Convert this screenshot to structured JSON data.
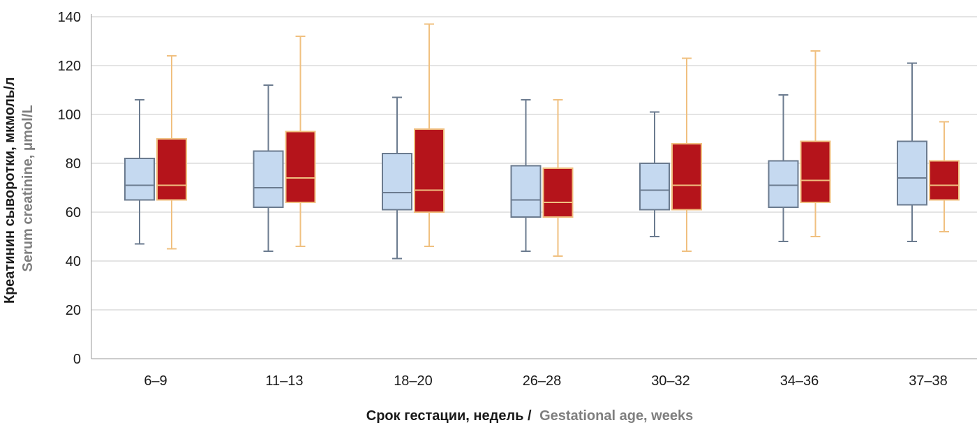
{
  "chart_data": {
    "type": "box",
    "categories": [
      "6–9",
      "11–13",
      "18–20",
      "26–28",
      "30–32",
      "34–36",
      "37–38"
    ],
    "ylim": [
      0,
      140
    ],
    "yticks": [
      0,
      20,
      40,
      60,
      80,
      100,
      120,
      140
    ],
    "grid": true,
    "ylabel_primary": "Креатинин сыворотки, мкмоль/л",
    "ylabel_secondary": "Serum creatinine, μmol/L",
    "xlabel_primary": "Срок гестации, недель /",
    "xlabel_secondary": "Gestational age, weeks",
    "series": [
      {
        "color_fill": "#c5d9f0",
        "color_stroke": "#6b7b8f",
        "color_median": "#6b7b8f",
        "boxes": [
          {
            "min": 47,
            "q1": 65,
            "median": 71,
            "q3": 82,
            "max": 106
          },
          {
            "min": 44,
            "q1": 62,
            "median": 70,
            "q3": 85,
            "max": 112
          },
          {
            "min": 41,
            "q1": 61,
            "median": 68,
            "q3": 84,
            "max": 107
          },
          {
            "min": 44,
            "q1": 58,
            "median": 65,
            "q3": 79,
            "max": 106
          },
          {
            "min": 50,
            "q1": 61,
            "median": 69,
            "q3": 80,
            "max": 101
          },
          {
            "min": 48,
            "q1": 62,
            "median": 71,
            "q3": 81,
            "max": 108
          },
          {
            "min": 48,
            "q1": 63,
            "median": 74,
            "q3": 89,
            "max": 121
          }
        ]
      },
      {
        "color_fill": "#b5141b",
        "color_stroke": "#f0c080",
        "color_median": "#f0c080",
        "boxes": [
          {
            "min": 45,
            "q1": 65,
            "median": 71,
            "q3": 90,
            "max": 124
          },
          {
            "min": 46,
            "q1": 64,
            "median": 74,
            "q3": 93,
            "max": 132
          },
          {
            "min": 46,
            "q1": 60,
            "median": 69,
            "q3": 94,
            "max": 137
          },
          {
            "min": 42,
            "q1": 58,
            "median": 64,
            "q3": 78,
            "max": 106
          },
          {
            "min": 44,
            "q1": 61,
            "median": 71,
            "q3": 88,
            "max": 123
          },
          {
            "min": 50,
            "q1": 64,
            "median": 73,
            "q3": 89,
            "max": 126
          },
          {
            "min": 52,
            "q1": 65,
            "median": 71,
            "q3": 81,
            "max": 97
          }
        ]
      }
    ]
  }
}
